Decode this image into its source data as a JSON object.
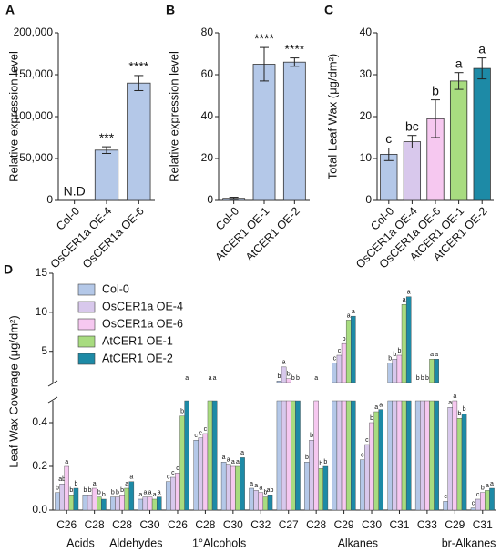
{
  "chart_data": [
    {
      "type": "bar",
      "panel": "A",
      "ylabel": "Relative expression level",
      "categories": [
        "Col-0",
        "OsCER1a OE-4",
        "OsCER1a OE-6"
      ],
      "values": [
        0,
        60000,
        140000
      ],
      "errors": [
        0,
        4000,
        9000
      ],
      "annotations": [
        "N.D",
        "***",
        "****"
      ],
      "color": "#b4c8e8",
      "ylim": [
        0,
        200000
      ],
      "yticks": [
        0,
        {
          "value": 50000,
          "label": "50,000"
        },
        {
          "value": 100000,
          "label": "100,000"
        },
        {
          "value": 150000,
          "label": "150,000"
        },
        {
          "value": 200000,
          "label": "200,000"
        }
      ]
    },
    {
      "type": "bar",
      "panel": "B",
      "ylabel": "Relative expression level",
      "categories": [
        "Col-0",
        "AtCER1 OE-1",
        "AtCER1 OE-2"
      ],
      "values": [
        1,
        65,
        66
      ],
      "errors": [
        0.5,
        8,
        2
      ],
      "annotations": [
        null,
        "****",
        "****"
      ],
      "color": "#b4c8e8",
      "ylim": [
        0,
        80
      ],
      "yticks": [
        0,
        20,
        40,
        60,
        80
      ]
    },
    {
      "type": "bar",
      "panel": "C",
      "ylabel": "Total Leaf Wax (μg/dm²)",
      "categories": [
        "Col-0",
        "OsCER1a OE-4",
        "OsCER1a OE-6",
        "AtCER1 OE-1",
        "AtCER1 OE-2"
      ],
      "values": [
        11,
        14,
        19.5,
        28.5,
        31.5
      ],
      "errors": [
        1.5,
        1.5,
        4.5,
        2,
        2.5
      ],
      "annotations": [
        "c",
        "bc",
        "b",
        "a",
        "a"
      ],
      "colors": [
        "#b4c8e8",
        "#d8c8ec",
        "#f6c8f0",
        "#a8dc80",
        "#1d8aa6"
      ],
      "ylim": [
        0,
        40
      ],
      "yticks": [
        0,
        10,
        20,
        30,
        40
      ]
    },
    {
      "type": "grouped_bar_broken",
      "panel": "D",
      "ylabel": "Leaf Wax Coverage (μg/dm²)",
      "groups": [
        {
          "name": "Acids",
          "categories": [
            "C26",
            "C28"
          ]
        },
        {
          "name": "Aldehydes",
          "categories": [
            "C28",
            "C30"
          ]
        },
        {
          "name": "1°Alcohols",
          "categories": [
            "C26",
            "C28",
            "C30",
            "C32"
          ]
        },
        {
          "name": "Alkanes",
          "categories": [
            "C27",
            "C28",
            "C29",
            "C30",
            "C31",
            "C33"
          ]
        },
        {
          "name": "br-Alkanes",
          "categories": [
            "C29",
            "C31"
          ]
        }
      ],
      "series": [
        {
          "name": "Col-0",
          "color": "#b4c8e8",
          "values": [
            0.08,
            0.07,
            0.06,
            0.05,
            0.13,
            0.32,
            0.22,
            0.1,
            1.2,
            0.22,
            3.5,
            0.23,
            3.5,
            0.6,
            0.04,
            0.01
          ],
          "letters": [
            "b",
            "b",
            "b",
            "a",
            "c",
            "c",
            "a",
            "a",
            "b",
            "b",
            "c",
            "c",
            "b",
            "b",
            "c",
            "c"
          ]
        },
        {
          "name": "OsCER1a OE-4",
          "color": "#d8c8ec",
          "values": [
            0.12,
            0.07,
            0.06,
            0.06,
            0.15,
            0.33,
            0.21,
            0.09,
            3,
            0.32,
            4.5,
            0.3,
            4,
            0.7,
            0.47,
            0.05
          ],
          "letters": [
            "ab",
            "b",
            "b",
            "a",
            "c",
            "c",
            "a",
            "a",
            "a",
            "b",
            "c",
            "c",
            "b",
            "b",
            "a",
            "c"
          ]
        },
        {
          "name": "OsCER1a OE-6",
          "color": "#f6c8f0",
          "values": [
            0.2,
            0.1,
            0.07,
            0.06,
            0.17,
            0.35,
            0.2,
            0.08,
            1.5,
            0.6,
            6,
            0.4,
            4.5,
            0.8,
            0.5,
            0.08
          ],
          "letters": [
            "a",
            "a",
            "b",
            "a",
            "c",
            "c",
            "a",
            "a",
            "b",
            "a",
            "b",
            "b",
            "b",
            "b",
            "a",
            "b"
          ]
        },
        {
          "name": "AtCER1 OE-1",
          "color": "#a8dc80",
          "values": [
            0.07,
            0.06,
            0.1,
            0.05,
            0.43,
            0.7,
            0.2,
            0.06,
            1,
            0.19,
            9,
            0.45,
            11,
            4,
            0.42,
            0.09
          ],
          "letters": [
            "b",
            "b",
            "a",
            "a",
            "b",
            "a",
            "a",
            "b",
            "b",
            "b",
            "a",
            "a",
            "a",
            "a",
            "b",
            "a"
          ]
        },
        {
          "name": "AtCER1 OE-2",
          "color": "#1d8aa6",
          "values": [
            0.1,
            0.05,
            0.13,
            0.06,
            0.6,
            0.7,
            0.24,
            0.07,
            1,
            0.2,
            9.5,
            0.46,
            12,
            4,
            0.44,
            0.1
          ],
          "letters": [
            "b",
            "b",
            "a",
            "a",
            "a",
            "a",
            "a",
            "ab",
            "b",
            "b",
            "a",
            "a",
            "a",
            "a",
            "b",
            "a"
          ]
        }
      ],
      "ylim_upper": [
        1,
        15
      ],
      "yticks_upper": [
        5,
        10,
        15
      ],
      "ylim_lower": [
        0,
        0.5
      ],
      "yticks_lower": [
        {
          "value": 0,
          "label": "0.0"
        },
        0.2,
        0.4
      ]
    }
  ]
}
